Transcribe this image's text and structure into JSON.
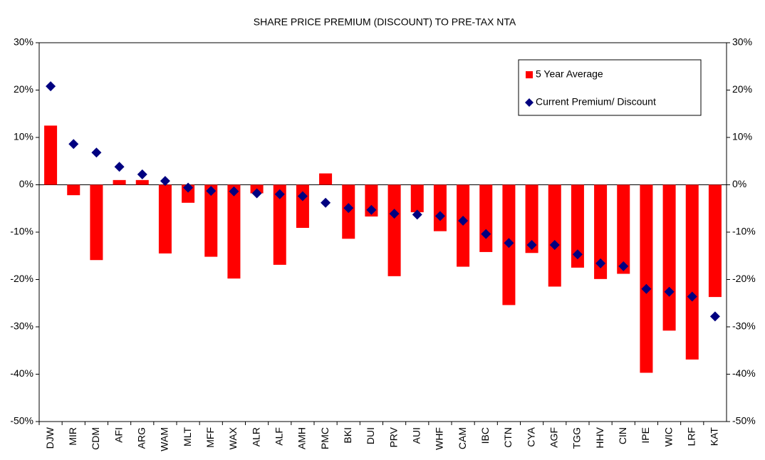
{
  "chart_data": {
    "type": "bar_scatter",
    "title": "SHARE PRICE PREMIUM (DISCOUNT) TO PRE-TAX NTA",
    "categories": [
      "DJW",
      "MIR",
      "CDM",
      "AFI",
      "ARG",
      "WAM",
      "MLT",
      "MFF",
      "WAX",
      "ALR",
      "ALF",
      "AMH",
      "PMC",
      "BKI",
      "DUI",
      "PRV",
      "AUI",
      "WHF",
      "CAM",
      "IBC",
      "CTN",
      "CYA",
      "AGF",
      "TGG",
      "HHV",
      "CIN",
      "IPE",
      "WIC",
      "LRF",
      "KAT"
    ],
    "series": [
      {
        "name": "5 Year Average",
        "type": "bar",
        "color": "#ff0000",
        "values": [
          12.5,
          -2.2,
          -15.9,
          1.0,
          1.0,
          -14.5,
          -3.8,
          -15.2,
          -19.8,
          -1.8,
          -16.9,
          -9.1,
          2.4,
          -11.4,
          -6.7,
          -19.3,
          -5.8,
          -9.8,
          -17.3,
          -14.2,
          -25.4,
          -14.4,
          -21.5,
          -17.5,
          -19.9,
          -18.8,
          -39.7,
          -30.8,
          -36.9,
          -23.7
        ]
      },
      {
        "name": "Current Premium/ Discount",
        "type": "scatter",
        "color": "#000080",
        "values": [
          20.8,
          8.6,
          6.8,
          3.8,
          2.2,
          0.8,
          -0.6,
          -1.3,
          -1.4,
          -1.8,
          -2.0,
          -2.4,
          -3.8,
          -4.9,
          -5.3,
          -6.1,
          -6.3,
          -6.6,
          -7.6,
          -10.4,
          -12.3,
          -12.7,
          -12.7,
          -14.7,
          -16.6,
          -17.2,
          -22.0,
          -22.6,
          -23.6,
          -27.8
        ]
      }
    ],
    "ylim": [
      -50,
      30
    ],
    "yticks": [
      {
        "value": -50,
        "label": "-50%"
      },
      {
        "value": -40,
        "label": "-40%"
      },
      {
        "value": -30,
        "label": "-30%"
      },
      {
        "value": -20,
        "label": "-20%"
      },
      {
        "value": -10,
        "label": "-10%"
      },
      {
        "value": 0,
        "label": "0%"
      },
      {
        "value": 10,
        "label": "10%"
      },
      {
        "value": 20,
        "label": "20%"
      },
      {
        "value": 30,
        "label": "30%"
      }
    ],
    "y2lim": [
      -50,
      30
    ],
    "y2ticks": [
      {
        "value": -50,
        "label": "-50%"
      },
      {
        "value": -40,
        "label": "-40%"
      },
      {
        "value": -30,
        "label": "-30%"
      },
      {
        "value": -20,
        "label": "-20%"
      },
      {
        "value": -10,
        "label": "-10%"
      },
      {
        "value": 0,
        "label": "0%"
      },
      {
        "value": 10,
        "label": "10%"
      },
      {
        "value": 20,
        "label": "20%"
      },
      {
        "value": 30,
        "label": "30%"
      }
    ],
    "grid": false,
    "legend": "upper right"
  }
}
